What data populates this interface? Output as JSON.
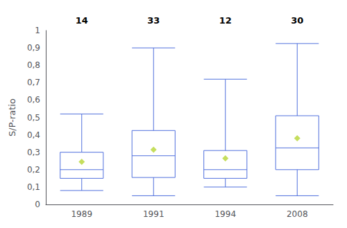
{
  "chart_data": {
    "type": "box",
    "categories": [
      "1989",
      "1991",
      "1994",
      "2008"
    ],
    "counts": [
      "14",
      "33",
      "12",
      "30"
    ],
    "boxes": [
      {
        "q1": 0.15,
        "median": 0.2,
        "q3": 0.3,
        "whisker_low": 0.08,
        "whisker_high": 0.52,
        "mean": 0.245
      },
      {
        "q1": 0.155,
        "median": 0.28,
        "q3": 0.425,
        "whisker_low": 0.05,
        "whisker_high": 0.9,
        "mean": 0.315
      },
      {
        "q1": 0.15,
        "median": 0.2,
        "q3": 0.31,
        "whisker_low": 0.1,
        "whisker_high": 0.72,
        "mean": 0.265
      },
      {
        "q1": 0.2,
        "median": 0.325,
        "q3": 0.51,
        "whisker_low": 0.05,
        "whisker_high": 0.925,
        "mean": 0.38
      }
    ],
    "marker": "diamond",
    "ylabel": "S/P-ratio",
    "ylim": [
      0,
      1
    ],
    "yticks": [
      0,
      {
        "value": 0.1,
        "label": "0,1"
      },
      {
        "value": 0.2,
        "label": "0,2"
      },
      {
        "value": 0.3,
        "label": "0,3"
      },
      {
        "value": 0.4,
        "label": "0,4"
      },
      {
        "value": 0.5,
        "label": "0,5"
      },
      {
        "value": 0.6,
        "label": "0,6"
      },
      {
        "value": 0.7,
        "label": "0,7"
      },
      {
        "value": 0.8,
        "label": "0,8"
      },
      {
        "value": 0.9,
        "label": "0,9"
      },
      1
    ],
    "grid": false
  }
}
